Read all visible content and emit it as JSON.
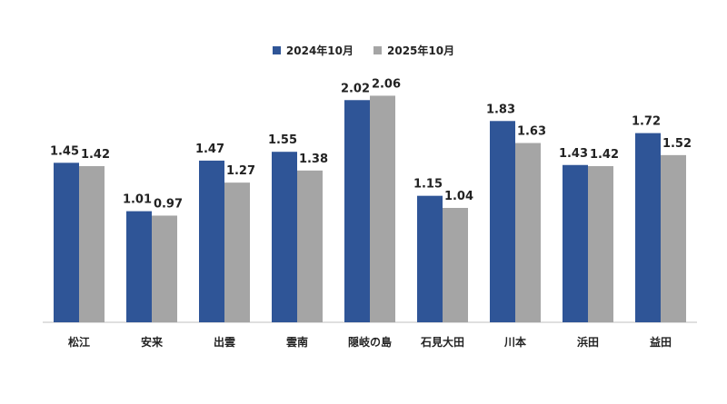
{
  "chart_data": {
    "type": "bar",
    "categories": [
      "松江",
      "安来",
      "出雲",
      "雲南",
      "隠岐の島",
      "石見大田",
      "川本",
      "浜田",
      "益田"
    ],
    "series": [
      {
        "name": "2024年10月",
        "color": "#2f5597",
        "values": [
          1.45,
          1.01,
          1.47,
          1.55,
          2.02,
          1.15,
          1.83,
          1.43,
          1.72
        ]
      },
      {
        "name": "2025年10月",
        "color": "#a5a5a5",
        "values": [
          1.42,
          0.97,
          1.27,
          1.38,
          2.06,
          1.04,
          1.63,
          1.42,
          1.52
        ]
      }
    ],
    "value_labels": [
      [
        "1.45",
        "1.01",
        "1.47",
        "1.55",
        "2.02",
        "1.15",
        "1.83",
        "1.43",
        "1.72"
      ],
      [
        "1.42",
        "0.97",
        "1.27",
        "1.38",
        "2.06",
        "1.04",
        "1.63",
        "1.42",
        "1.52"
      ]
    ],
    "ylim": [
      0,
      2.6
    ],
    "legend_position": "top-center",
    "grid": false
  }
}
